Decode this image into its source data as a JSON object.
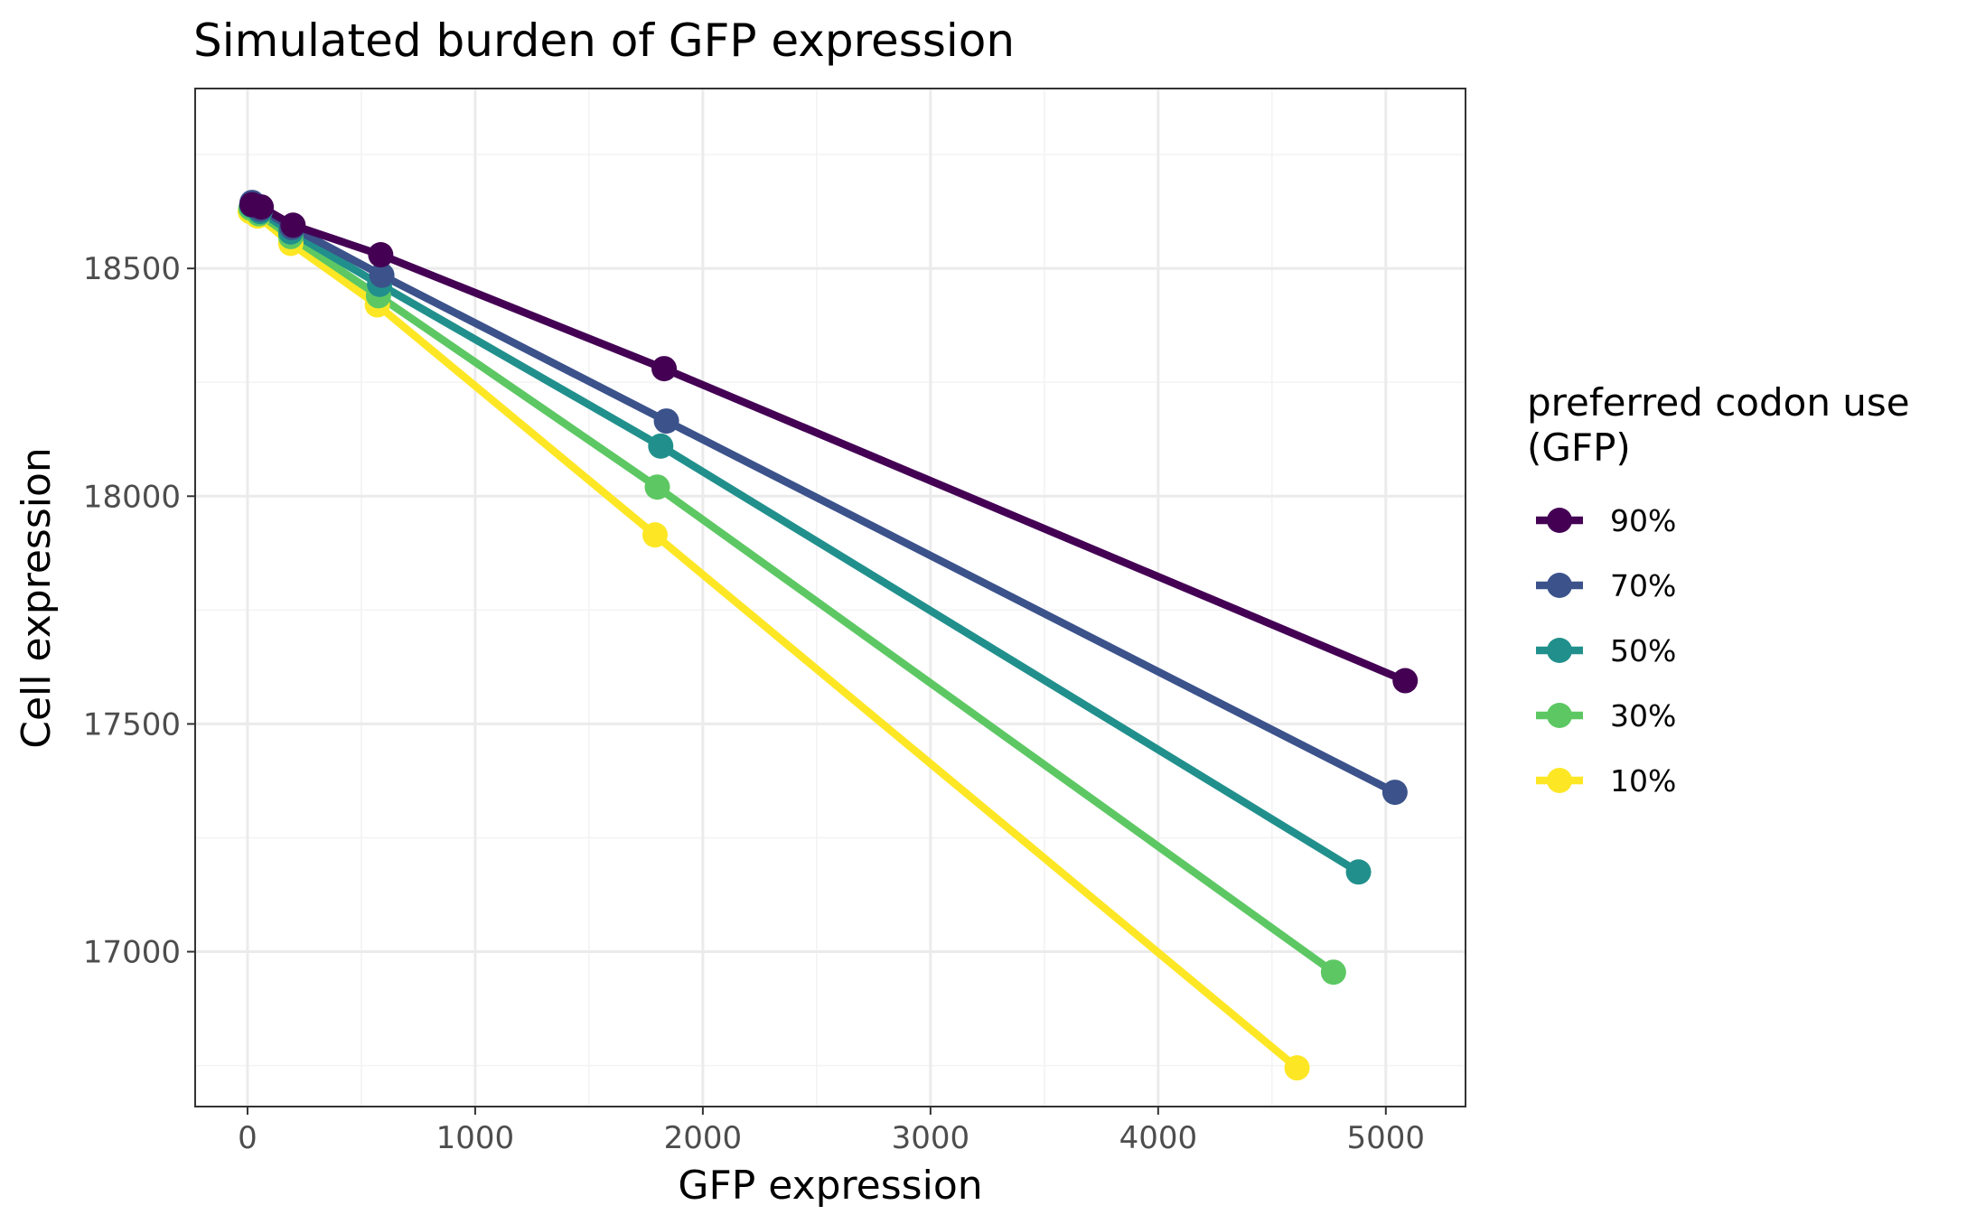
{
  "chart_data": {
    "type": "line",
    "title": "Simulated burden of GFP expression",
    "xlabel": "GFP expression",
    "ylabel": "Cell expression",
    "xlim": [
      -230,
      5350
    ],
    "ylim": [
      16660,
      18895
    ],
    "x_ticks": [
      0,
      1000,
      2000,
      3000,
      4000,
      5000
    ],
    "y_ticks": [
      17000,
      17500,
      18000,
      18500
    ],
    "x_tick_labels": [
      "0",
      "1000",
      "2000",
      "3000",
      "4000",
      "5000"
    ],
    "y_tick_labels": [
      "17000",
      "17500",
      "18000",
      "18500"
    ],
    "x_minor": [
      500,
      1500,
      2500,
      3500,
      4500
    ],
    "y_minor": [
      16750,
      17250,
      17750,
      18250,
      18750
    ],
    "grid": true,
    "legend": {
      "title_line1": "preferred codon use",
      "title_line2": "(GFP)",
      "placement": "right"
    },
    "series": [
      {
        "name": "90%",
        "color": "#440154",
        "points": [
          [
            20,
            18640
          ],
          [
            60,
            18635
          ],
          [
            200,
            18595
          ],
          [
            585,
            18530
          ],
          [
            1830,
            18280
          ],
          [
            5085,
            17595
          ]
        ]
      },
      {
        "name": "70%",
        "color": "#3B528B",
        "points": [
          [
            20,
            18645
          ],
          [
            55,
            18630
          ],
          [
            195,
            18590
          ],
          [
            590,
            18485
          ],
          [
            1840,
            18165
          ],
          [
            5040,
            17350
          ]
        ]
      },
      {
        "name": "50%",
        "color": "#21908C",
        "points": [
          [
            18,
            18638
          ],
          [
            55,
            18625
          ],
          [
            190,
            18580
          ],
          [
            580,
            18465
          ],
          [
            1815,
            18110
          ],
          [
            4880,
            17175
          ]
        ]
      },
      {
        "name": "30%",
        "color": "#5DC863",
        "points": [
          [
            15,
            18632
          ],
          [
            50,
            18620
          ],
          [
            190,
            18570
          ],
          [
            575,
            18440
          ],
          [
            1800,
            18020
          ],
          [
            4770,
            16955
          ]
        ]
      },
      {
        "name": "10%",
        "color": "#FDE725",
        "points": [
          [
            12,
            18625
          ],
          [
            45,
            18615
          ],
          [
            190,
            18555
          ],
          [
            570,
            18420
          ],
          [
            1790,
            17915
          ],
          [
            4610,
            16745
          ]
        ]
      }
    ]
  }
}
